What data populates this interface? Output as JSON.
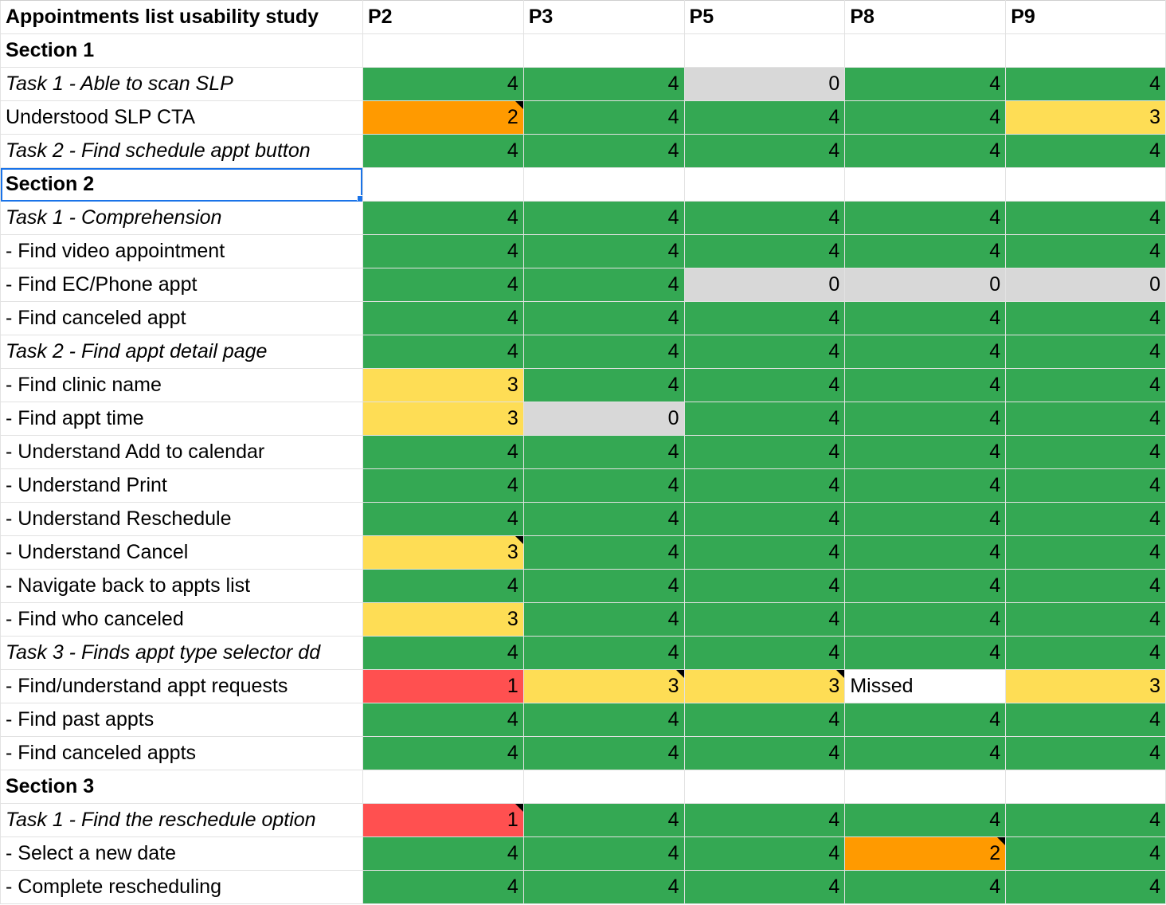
{
  "sheet": {
    "header": {
      "title": "Appointments list usability study",
      "participants": [
        "P2",
        "P3",
        "P5",
        "P8",
        "P9"
      ]
    },
    "colors": {
      "4": "#34a853",
      "3": "#fedd55",
      "2": "#ff9a00",
      "1": "#ff5050",
      "0": "#d8d8d8",
      "blank": "#ffffff",
      "selection": "#1a73e8"
    },
    "rows": [
      {
        "label": "Section 1",
        "style": "section",
        "cells": []
      },
      {
        "label": "Task 1 - Able to scan SLP",
        "style": "task",
        "cells": [
          "4",
          "4",
          "0",
          "4",
          "4"
        ]
      },
      {
        "label": "Understood SLP CTA",
        "style": "normal",
        "cells": [
          "2",
          "4",
          "4",
          "4",
          "3"
        ],
        "notes": [
          0
        ]
      },
      {
        "label": "Task 2 - Find schedule appt button",
        "style": "task",
        "cells": [
          "4",
          "4",
          "4",
          "4",
          "4"
        ]
      },
      {
        "label": "Section 2",
        "style": "section",
        "cells": [],
        "selected": true
      },
      {
        "label": "Task 1 - Comprehension",
        "style": "task",
        "cells": [
          "4",
          "4",
          "4",
          "4",
          "4"
        ]
      },
      {
        "label": "- Find video appointment",
        "style": "normal",
        "cells": [
          "4",
          "4",
          "4",
          "4",
          "4"
        ]
      },
      {
        "label": "- Find EC/Phone appt",
        "style": "normal",
        "cells": [
          "4",
          "4",
          "0",
          "0",
          "0"
        ]
      },
      {
        "label": "- Find canceled appt",
        "style": "normal",
        "cells": [
          "4",
          "4",
          "4",
          "4",
          "4"
        ]
      },
      {
        "label": "Task 2 - Find appt detail page",
        "style": "task",
        "cells": [
          "4",
          "4",
          "4",
          "4",
          "4"
        ]
      },
      {
        "label": "- Find clinic name",
        "style": "normal",
        "cells": [
          "3",
          "4",
          "4",
          "4",
          "4"
        ]
      },
      {
        "label": "- Find appt time",
        "style": "normal",
        "cells": [
          "3",
          "0",
          "4",
          "4",
          "4"
        ]
      },
      {
        "label": "- Understand Add to calendar",
        "style": "normal",
        "cells": [
          "4",
          "4",
          "4",
          "4",
          "4"
        ]
      },
      {
        "label": "- Understand Print",
        "style": "normal",
        "cells": [
          "4",
          "4",
          "4",
          "4",
          "4"
        ]
      },
      {
        "label": "- Understand Reschedule",
        "style": "normal",
        "cells": [
          "4",
          "4",
          "4",
          "4",
          "4"
        ]
      },
      {
        "label": "- Understand Cancel",
        "style": "normal",
        "cells": [
          "3",
          "4",
          "4",
          "4",
          "4"
        ],
        "notes": [
          0
        ]
      },
      {
        "label": "- Navigate back to appts list",
        "style": "normal",
        "cells": [
          "4",
          "4",
          "4",
          "4",
          "4"
        ]
      },
      {
        "label": "- Find who canceled",
        "style": "normal",
        "cells": [
          "3",
          "4",
          "4",
          "4",
          "4"
        ]
      },
      {
        "label": "Task 3 - Finds appt type selector dd",
        "style": "task",
        "cells": [
          "4",
          "4",
          "4",
          "4",
          "4"
        ]
      },
      {
        "label": "- Find/understand appt requests",
        "style": "normal",
        "cells": [
          "1",
          "3",
          "3",
          "Missed",
          "3"
        ],
        "notes": [
          1,
          2
        ]
      },
      {
        "label": "- Find past appts",
        "style": "normal",
        "cells": [
          "4",
          "4",
          "4",
          "4",
          "4"
        ]
      },
      {
        "label": "- Find canceled appts",
        "style": "normal",
        "cells": [
          "4",
          "4",
          "4",
          "4",
          "4"
        ]
      },
      {
        "label": "Section 3",
        "style": "section",
        "cells": []
      },
      {
        "label": "Task 1 - Find the reschedule option",
        "style": "task",
        "cells": [
          "1",
          "4",
          "4",
          "4",
          "4"
        ],
        "notes": [
          0
        ]
      },
      {
        "label": "- Select a new date",
        "style": "normal",
        "cells": [
          "4",
          "4",
          "4",
          "2",
          "4"
        ],
        "notes": [
          3
        ]
      },
      {
        "label": "- Complete rescheduling",
        "style": "normal",
        "cells": [
          "4",
          "4",
          "4",
          "4",
          "4"
        ]
      }
    ]
  }
}
